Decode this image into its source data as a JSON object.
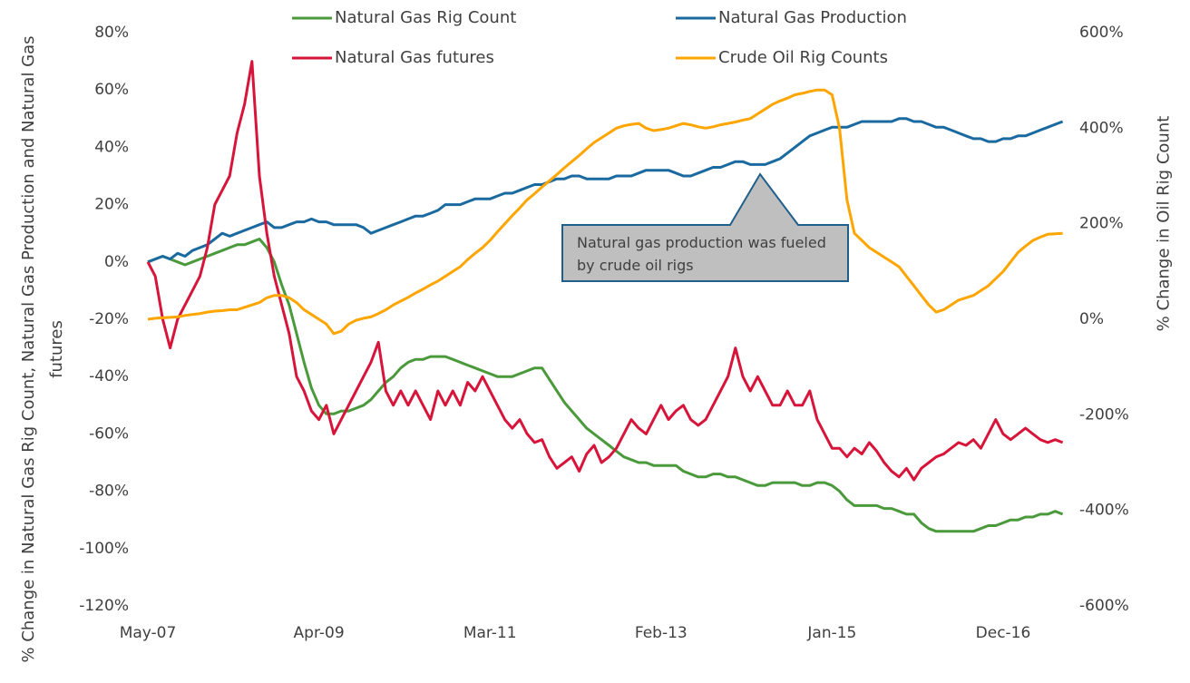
{
  "chart_data": {
    "type": "line",
    "y_label": "% Change in Natural Gas Rig Count, Natural Gas Production and Natural Gas futures",
    "y2_label": "% Change in Oil Rig Count",
    "annotation": "Natural gas production was fueled by crude oil rigs",
    "legend": "top",
    "categories": [
      "May-07",
      null,
      null,
      null,
      null,
      null,
      null,
      null,
      null,
      null,
      null,
      null,
      null,
      null,
      null,
      null,
      null,
      null,
      null,
      null,
      null,
      null,
      null,
      "Apr-09",
      null,
      null,
      null,
      null,
      null,
      null,
      null,
      null,
      null,
      null,
      null,
      null,
      null,
      null,
      null,
      null,
      null,
      null,
      null,
      null,
      null,
      null,
      "Mar-11",
      null,
      null,
      null,
      null,
      null,
      null,
      null,
      null,
      null,
      null,
      null,
      null,
      null,
      null,
      null,
      null,
      null,
      null,
      null,
      null,
      null,
      null,
      "Feb-13",
      null,
      null,
      null,
      null,
      null,
      null,
      null,
      null,
      null,
      null,
      null,
      null,
      null,
      null,
      null,
      null,
      null,
      null,
      null,
      null,
      null,
      null,
      "Jan-15",
      null,
      null,
      null,
      null,
      null,
      null,
      null,
      null,
      null,
      null,
      null,
      null,
      null,
      null,
      null,
      null,
      null,
      null,
      null,
      null,
      null,
      null,
      "Dec-16",
      null,
      null,
      null,
      null,
      null,
      null,
      null,
      null
    ],
    "ylim": [
      -120,
      80
    ],
    "yticks": [
      {
        "value": 80,
        "label": "80%"
      },
      {
        "value": 60,
        "label": "60%"
      },
      {
        "value": 40,
        "label": "40%"
      },
      {
        "value": 20,
        "label": "20%"
      },
      {
        "value": 0,
        "label": "0%"
      },
      {
        "value": -20,
        "label": "-20%"
      },
      {
        "value": -40,
        "label": "-40%"
      },
      {
        "value": -60,
        "label": "-60%"
      },
      {
        "value": -80,
        "label": "-80%"
      },
      {
        "value": -100,
        "label": "-100%"
      },
      {
        "value": -120,
        "label": "-120%"
      }
    ],
    "y2lim": [
      -600,
      600
    ],
    "y2ticks": [
      {
        "value": 600,
        "label": "600%"
      },
      {
        "value": 400,
        "label": "400%"
      },
      {
        "value": 200,
        "label": "200%"
      },
      {
        "value": 0,
        "label": "0%"
      },
      {
        "value": -200,
        "label": "-200%"
      },
      {
        "value": -400,
        "label": "-400%"
      },
      {
        "value": -600,
        "label": "-600%"
      }
    ],
    "series": [
      {
        "name": "Natural Gas Rig Count",
        "color": "#4a9a3c",
        "values": [
          0,
          1,
          2,
          1,
          0,
          -1,
          0,
          1,
          2,
          3,
          4,
          5,
          6,
          6,
          7,
          8,
          5,
          0,
          -8,
          -15,
          -25,
          -35,
          -44,
          -50,
          -53,
          -53,
          -52,
          -52,
          -51,
          -50,
          -48,
          -45,
          -42,
          -40,
          -37,
          -35,
          -34,
          -34,
          -33,
          -33,
          -33,
          -34,
          -35,
          -36,
          -37,
          -38,
          -39,
          -40,
          -40,
          -40,
          -39,
          -38,
          -37,
          -37,
          -41,
          -45,
          -49,
          -52,
          -55,
          -58,
          -60,
          -62,
          -64,
          -66,
          -68,
          -69,
          -70,
          -70,
          -71,
          -71,
          -71,
          -71,
          -73,
          -74,
          -75,
          -75,
          -74,
          -74,
          -75,
          -75,
          -76,
          -77,
          -78,
          -78,
          -77,
          -77,
          -77,
          -77,
          -78,
          -78,
          -77,
          -77,
          -78,
          -80,
          -83,
          -85,
          -85,
          -85,
          -85,
          -86,
          -86,
          -87,
          -88,
          -88,
          -91,
          -93,
          -94,
          -94,
          -94,
          -94,
          -94,
          -94,
          -93,
          -92,
          -92,
          -91,
          -90,
          -90,
          -89,
          -89,
          -88,
          -88,
          -87,
          -88
        ]
      },
      {
        "name": "Natural Gas Production",
        "color": "#1a6aa0",
        "values": [
          0,
          1,
          2,
          1,
          3,
          2,
          4,
          5,
          6,
          8,
          10,
          9,
          10,
          11,
          12,
          13,
          14,
          12,
          12,
          13,
          14,
          14,
          15,
          14,
          14,
          13,
          13,
          13,
          13,
          12,
          10,
          11,
          12,
          13,
          14,
          15,
          16,
          16,
          17,
          18,
          20,
          20,
          20,
          21,
          22,
          22,
          22,
          23,
          24,
          24,
          25,
          26,
          27,
          27,
          28,
          29,
          29,
          30,
          30,
          29,
          29,
          29,
          29,
          30,
          30,
          30,
          31,
          32,
          32,
          32,
          32,
          31,
          30,
          30,
          31,
          32,
          33,
          33,
          34,
          35,
          35,
          34,
          34,
          34,
          35,
          36,
          38,
          40,
          42,
          44,
          45,
          46,
          47,
          47,
          47,
          48,
          49,
          49,
          49,
          49,
          49,
          50,
          50,
          49,
          49,
          48,
          47,
          47,
          46,
          45,
          44,
          43,
          43,
          42,
          42,
          43,
          43,
          44,
          44,
          45,
          46,
          47,
          48,
          49
        ]
      },
      {
        "name": "Natural Gas futures",
        "color": "#d7153a",
        "values": [
          0,
          -5,
          -20,
          -30,
          -20,
          -15,
          -10,
          -5,
          5,
          20,
          25,
          30,
          45,
          55,
          70,
          30,
          10,
          -5,
          -15,
          -25,
          -40,
          -45,
          -52,
          -55,
          -50,
          -60,
          -55,
          -50,
          -45,
          -40,
          -35,
          -28,
          -45,
          -50,
          -45,
          -50,
          -45,
          -50,
          -55,
          -45,
          -50,
          -45,
          -50,
          -42,
          -45,
          -40,
          -45,
          -50,
          -55,
          -58,
          -55,
          -60,
          -63,
          -62,
          -68,
          -72,
          -70,
          -68,
          -73,
          -67,
          -64,
          -70,
          -68,
          -65,
          -60,
          -55,
          -58,
          -60,
          -55,
          -50,
          -55,
          -52,
          -50,
          -55,
          -57,
          -55,
          -50,
          -45,
          -40,
          -30,
          -40,
          -45,
          -40,
          -45,
          -50,
          -50,
          -45,
          -50,
          -50,
          -45,
          -55,
          -60,
          -65,
          -65,
          -68,
          -65,
          -67,
          -63,
          -66,
          -70,
          -73,
          -75,
          -72,
          -76,
          -72,
          -70,
          -68,
          -67,
          -65,
          -63,
          -64,
          -62,
          -65,
          -60,
          -55,
          -60,
          -62,
          -60,
          -58,
          -60,
          -62,
          -63,
          -62,
          -63
        ]
      },
      {
        "name": "Crude Oil Rig Counts",
        "color": "#ffa500",
        "axis": "y2",
        "values": [
          0,
          2,
          3,
          4,
          5,
          8,
          10,
          12,
          15,
          17,
          18,
          20,
          20,
          25,
          30,
          35,
          45,
          50,
          50,
          45,
          35,
          20,
          10,
          0,
          -10,
          -30,
          -25,
          -10,
          -2,
          2,
          5,
          12,
          20,
          30,
          38,
          46,
          55,
          63,
          72,
          80,
          90,
          100,
          110,
          125,
          138,
          150,
          165,
          183,
          200,
          217,
          233,
          250,
          263,
          277,
          290,
          303,
          317,
          330,
          343,
          357,
          370,
          380,
          390,
          400,
          405,
          408,
          410,
          400,
          395,
          397,
          400,
          405,
          410,
          407,
          403,
          400,
          403,
          407,
          410,
          413,
          417,
          420,
          430,
          440,
          450,
          457,
          463,
          470,
          473,
          477,
          480,
          480,
          470,
          400,
          250,
          180,
          165,
          150,
          140,
          130,
          120,
          110,
          90,
          70,
          50,
          30,
          15,
          20,
          30,
          40,
          45,
          50,
          60,
          70,
          85,
          100,
          120,
          140,
          153,
          165,
          172,
          178,
          179,
          180
        ]
      }
    ]
  }
}
